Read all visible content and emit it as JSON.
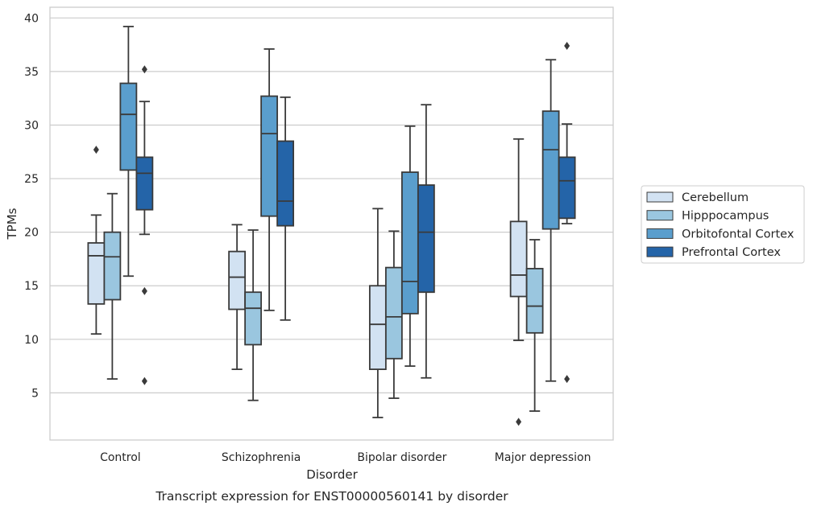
{
  "chart_data": {
    "type": "box",
    "xlabel": "Disorder",
    "ylabel": "TPMs",
    "caption": "Transcript expression for ENST00000560141 by disorder",
    "ylim": [
      0.6,
      41.0
    ],
    "yticks": [
      5,
      10,
      15,
      20,
      25,
      30,
      35,
      40
    ],
    "grid": "horizontal",
    "legend_position": "right",
    "categories": [
      "Control",
      "Schizophrenia",
      "Bipolar disorder",
      "Major depression"
    ],
    "series": [
      {
        "name": "Cerebellum",
        "color": "#d2e2f2",
        "boxes": [
          {
            "whisker_low": 10.5,
            "q1": 13.3,
            "median": 17.8,
            "q3": 19.0,
            "whisker_high": 21.6,
            "outliers": [
              27.7
            ]
          },
          {
            "whisker_low": 7.2,
            "q1": 12.8,
            "median": 15.8,
            "q3": 18.2,
            "whisker_high": 20.7,
            "outliers": []
          },
          {
            "whisker_low": 2.7,
            "q1": 7.2,
            "median": 11.4,
            "q3": 15.0,
            "whisker_high": 22.2,
            "outliers": []
          },
          {
            "whisker_low": 9.9,
            "q1": 14.0,
            "median": 16.0,
            "q3": 21.0,
            "whisker_high": 28.7,
            "outliers": [
              2.3
            ]
          }
        ]
      },
      {
        "name": "Hipppocampus",
        "color": "#9ac6df",
        "boxes": [
          {
            "whisker_low": 6.3,
            "q1": 13.7,
            "median": 17.7,
            "q3": 20.0,
            "whisker_high": 23.6,
            "outliers": []
          },
          {
            "whisker_low": 4.3,
            "q1": 9.5,
            "median": 12.9,
            "q3": 14.4,
            "whisker_high": 20.2,
            "outliers": []
          },
          {
            "whisker_low": 4.5,
            "q1": 8.2,
            "median": 12.1,
            "q3": 16.7,
            "whisker_high": 20.1,
            "outliers": []
          },
          {
            "whisker_low": 3.3,
            "q1": 10.6,
            "median": 13.1,
            "q3": 16.6,
            "whisker_high": 19.3,
            "outliers": []
          }
        ]
      },
      {
        "name": "Orbitofontal Cortex",
        "color": "#5a9ecd",
        "boxes": [
          {
            "whisker_low": 15.9,
            "q1": 25.8,
            "median": 31.0,
            "q3": 33.9,
            "whisker_high": 39.2,
            "outliers": []
          },
          {
            "whisker_low": 12.7,
            "q1": 21.5,
            "median": 29.2,
            "q3": 32.7,
            "whisker_high": 37.1,
            "outliers": []
          },
          {
            "whisker_low": 7.5,
            "q1": 12.4,
            "median": 15.4,
            "q3": 25.6,
            "whisker_high": 29.9,
            "outliers": []
          },
          {
            "whisker_low": 6.1,
            "q1": 20.3,
            "median": 27.7,
            "q3": 31.3,
            "whisker_high": 36.1,
            "outliers": []
          }
        ]
      },
      {
        "name": "Prefrontal Cortex",
        "color": "#2464a8",
        "boxes": [
          {
            "whisker_low": 19.8,
            "q1": 22.1,
            "median": 25.5,
            "q3": 27.0,
            "whisker_high": 32.2,
            "outliers": [
              35.2,
              14.5,
              6.1
            ]
          },
          {
            "whisker_low": 11.8,
            "q1": 20.6,
            "median": 22.9,
            "q3": 28.5,
            "whisker_high": 32.6,
            "outliers": []
          },
          {
            "whisker_low": 6.4,
            "q1": 14.4,
            "median": 20.0,
            "q3": 24.4,
            "whisker_high": 31.9,
            "outliers": []
          },
          {
            "whisker_low": 20.8,
            "q1": 21.3,
            "median": 24.8,
            "q3": 27.0,
            "whisker_high": 30.1,
            "outliers": [
              37.4,
              6.3
            ]
          }
        ]
      }
    ]
  }
}
